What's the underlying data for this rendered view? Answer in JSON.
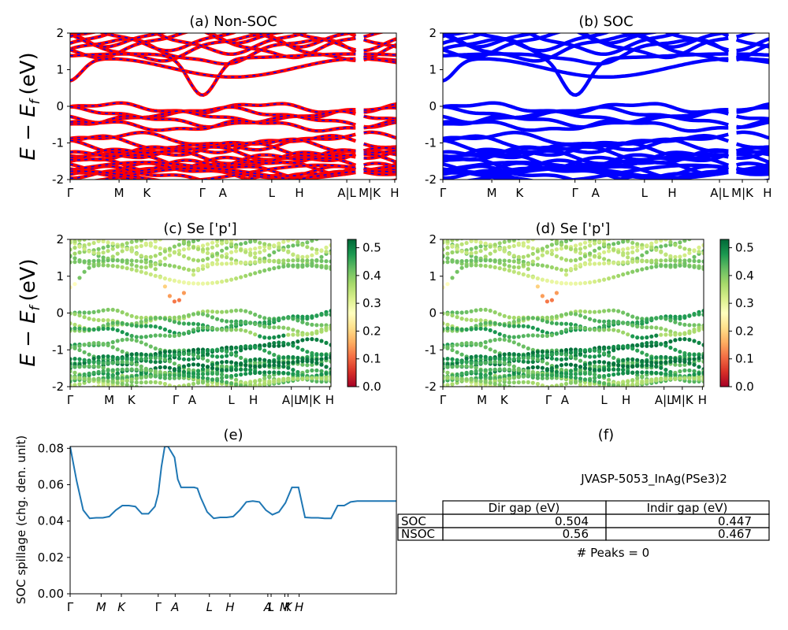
{
  "figure": {
    "ylabel": "E − E_f (eV)",
    "ylabel_main": "E − E",
    "ylabel_sub": "f",
    "ylabel_unit": "(eV)"
  },
  "panels": {
    "a": {
      "title": "(a) Non-SOC"
    },
    "b": {
      "title": "(b) SOC"
    },
    "c": {
      "title": "(c)  Se ['p']"
    },
    "d": {
      "title": "(d) Se ['p']"
    },
    "e": {
      "title": "(e)",
      "ylabel": "SOC spillage (chg. den. unit)"
    },
    "f": {
      "title": "(f)"
    }
  },
  "kpath": [
    "Γ",
    "M",
    "K",
    "Γ",
    "A",
    "L",
    "H",
    "A|L",
    "M|K",
    "H"
  ],
  "kpath_e": [
    "Γ",
    "M",
    "K",
    "Γ",
    "A",
    "L",
    "H",
    "A",
    "L",
    "M",
    "K",
    "H"
  ],
  "colors": {
    "nonsoc_band": "#ff0000",
    "nonsoc_dash": "#0000ff",
    "soc_band": "#0000ff",
    "spillage_line": "#1f77b4",
    "colormap": "RdYlGn"
  },
  "chart_data": [
    {
      "id": "a",
      "type": "line",
      "title": "(a) Non-SOC",
      "ylabel": "E − E_f (eV)",
      "ylim": [
        -2,
        2
      ],
      "yticks": [
        -2,
        -1,
        0,
        1,
        2
      ],
      "xticks": [
        "Γ",
        "M",
        "K",
        "Γ",
        "A",
        "L",
        "H",
        "A|L",
        "M|K",
        "H"
      ],
      "grid": false
    },
    {
      "id": "b",
      "type": "line",
      "title": "(b) SOC",
      "ylim": [
        -2,
        2
      ],
      "yticks": [
        -2,
        -1,
        0,
        1,
        2
      ],
      "xticks": [
        "Γ",
        "M",
        "K",
        "Γ",
        "A",
        "L",
        "H",
        "A|L",
        "M|K",
        "H"
      ],
      "grid": false
    },
    {
      "id": "c",
      "type": "scatter",
      "title": "(c)  Se ['p']",
      "ylabel": "E − E_f (eV)",
      "ylim": [
        -2,
        2
      ],
      "yticks": [
        -2,
        -1,
        0,
        1,
        2
      ],
      "colorbar": {
        "min": 0.0,
        "max": 0.53,
        "ticks": [
          "0.0",
          "0.1",
          "0.2",
          "0.3",
          "0.4",
          "0.5"
        ]
      },
      "xticks": [
        "Γ",
        "M",
        "K",
        "Γ",
        "A",
        "L",
        "H",
        "A|L",
        "M|K",
        "H"
      ]
    },
    {
      "id": "d",
      "type": "scatter",
      "title": "(d) Se ['p']",
      "ylim": [
        -2,
        2
      ],
      "yticks": [
        -2,
        -1,
        0,
        1,
        2
      ],
      "colorbar": {
        "min": 0.0,
        "max": 0.53,
        "ticks": [
          "0.0",
          "0.1",
          "0.2",
          "0.3",
          "0.4",
          "0.5"
        ]
      },
      "xticks": [
        "Γ",
        "M",
        "K",
        "Γ",
        "A",
        "L",
        "H",
        "A|L",
        "M|K",
        "H"
      ]
    },
    {
      "id": "e",
      "type": "line",
      "title": "(e)",
      "ylabel": "SOC spillage (chg. den. unit)",
      "ylim": [
        0.0,
        0.081
      ],
      "yticks": [
        "0.00",
        "0.02",
        "0.04",
        "0.06",
        "0.08"
      ],
      "x": [
        0,
        0.02,
        0.04,
        0.06,
        0.08,
        0.1,
        0.12,
        0.14,
        0.16,
        0.18,
        0.2,
        0.22,
        0.24,
        0.26,
        0.27,
        0.28,
        0.29,
        0.3,
        0.32,
        0.33,
        0.34,
        0.35,
        0.36,
        0.37,
        0.38,
        0.39,
        0.4,
        0.42,
        0.44,
        0.46,
        0.48,
        0.5,
        0.52,
        0.54,
        0.56,
        0.58,
        0.6,
        0.62,
        0.64,
        0.66,
        0.68,
        0.7,
        0.72,
        0.74,
        0.76,
        0.78,
        0.8,
        0.82,
        0.84,
        0.86,
        0.88,
        0.9,
        0.92,
        0.94,
        0.96,
        0.98,
        1.0
      ],
      "values": [
        0.081,
        0.062,
        0.046,
        0.0415,
        0.0418,
        0.0418,
        0.0425,
        0.046,
        0.0485,
        0.0485,
        0.048,
        0.044,
        0.044,
        0.048,
        0.055,
        0.07,
        0.081,
        0.081,
        0.075,
        0.063,
        0.0585,
        0.0585,
        0.0585,
        0.0585,
        0.0585,
        0.058,
        0.053,
        0.045,
        0.0415,
        0.042,
        0.042,
        0.0425,
        0.046,
        0.0505,
        0.051,
        0.0505,
        0.046,
        0.0435,
        0.045,
        0.05,
        0.0585,
        0.0585,
        0.042,
        0.0418,
        0.0418,
        0.0415,
        0.0415,
        0.0485,
        0.0485,
        0.0505,
        0.051,
        0.051,
        0.051,
        0.051,
        0.051,
        0.051,
        0.051
      ],
      "xticks": [
        "Γ",
        "M",
        "K",
        "Γ",
        "A",
        "L",
        "H",
        "A",
        "L",
        "M",
        "K",
        "H"
      ]
    },
    {
      "id": "f",
      "type": "table",
      "title": "(f)",
      "caption": "JVASP-5053_InAg(PSe3)2",
      "columns": [
        "Dir gap (eV)",
        "Indir gap (eV)"
      ],
      "rows": [
        {
          "label": "SOC",
          "values": [
            "0.504",
            "0.447"
          ]
        },
        {
          "label": "NSOC",
          "values": [
            "0.56",
            "0.467"
          ]
        }
      ],
      "footer": "# Peaks = 0"
    }
  ]
}
